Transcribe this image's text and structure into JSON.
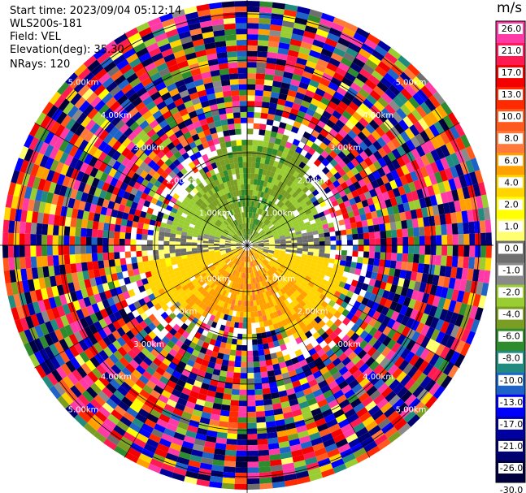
{
  "header": {
    "start_time": "Start time: 2023/09/04 05:12:14",
    "instrument": "WLS200s-181",
    "field": "Field: VEL",
    "elevation": "Elevation(deg): 35.30",
    "nrays": "NRays: 120"
  },
  "colorbar": {
    "unit": "m/s",
    "ticks": [
      "26.0",
      "21.0",
      "17.0",
      "13.0",
      "10.0",
      "8.0",
      "6.0",
      "4.0",
      "2.0",
      "1.0",
      "0.0",
      "-1.0",
      "-2.0",
      "-4.0",
      "-6.0",
      "-8.0",
      "-10.0",
      "-13.0",
      "-17.0",
      "-21.0",
      "-26.0",
      "-30.0"
    ],
    "colors": [
      "#ff3aa6",
      "#ff1a52",
      "#f30000",
      "#ff2a00",
      "#ff5a1e",
      "#ff7a3a",
      "#ffa000",
      "#ffd400",
      "#ffff00",
      "#ffff70",
      "#6e6e6e",
      "#8a8a8a",
      "#9acd32",
      "#7a9e23",
      "#2e8b2e",
      "#228b80",
      "#1e64c8",
      "#0000ff",
      "#0000a0",
      "#000070",
      "#000040"
    ]
  },
  "chart_data": {
    "type": "heatmap",
    "projection": "polar-ppi",
    "title": "",
    "nrays": 120,
    "range_rings_km": [
      1.0,
      2.0,
      3.0,
      4.0,
      5.0
    ],
    "ring_labels": [
      "1.00km",
      "2.00km",
      "3.00km",
      "4.00km",
      "5.00km"
    ],
    "color_scale_m_per_s": {
      "boundaries": [
        26.0,
        21.0,
        17.0,
        13.0,
        10.0,
        8.0,
        6.0,
        4.0,
        2.0,
        1.0,
        0.0,
        -1.0,
        -2.0,
        -4.0,
        -6.0,
        -8.0,
        -10.0,
        -13.0,
        -17.0,
        -21.0,
        -26.0,
        -30.0
      ]
    },
    "near_field_pattern": {
      "north_sector": "negative velocities (-1 to -6 m/s, greens/olive)",
      "south_sector": "positive velocities (2 to 8 m/s, yellow/orange)",
      "east_west_band": "near zero (0 to -1 m/s, grey)",
      "far_field": "noisy, all colors"
    }
  }
}
